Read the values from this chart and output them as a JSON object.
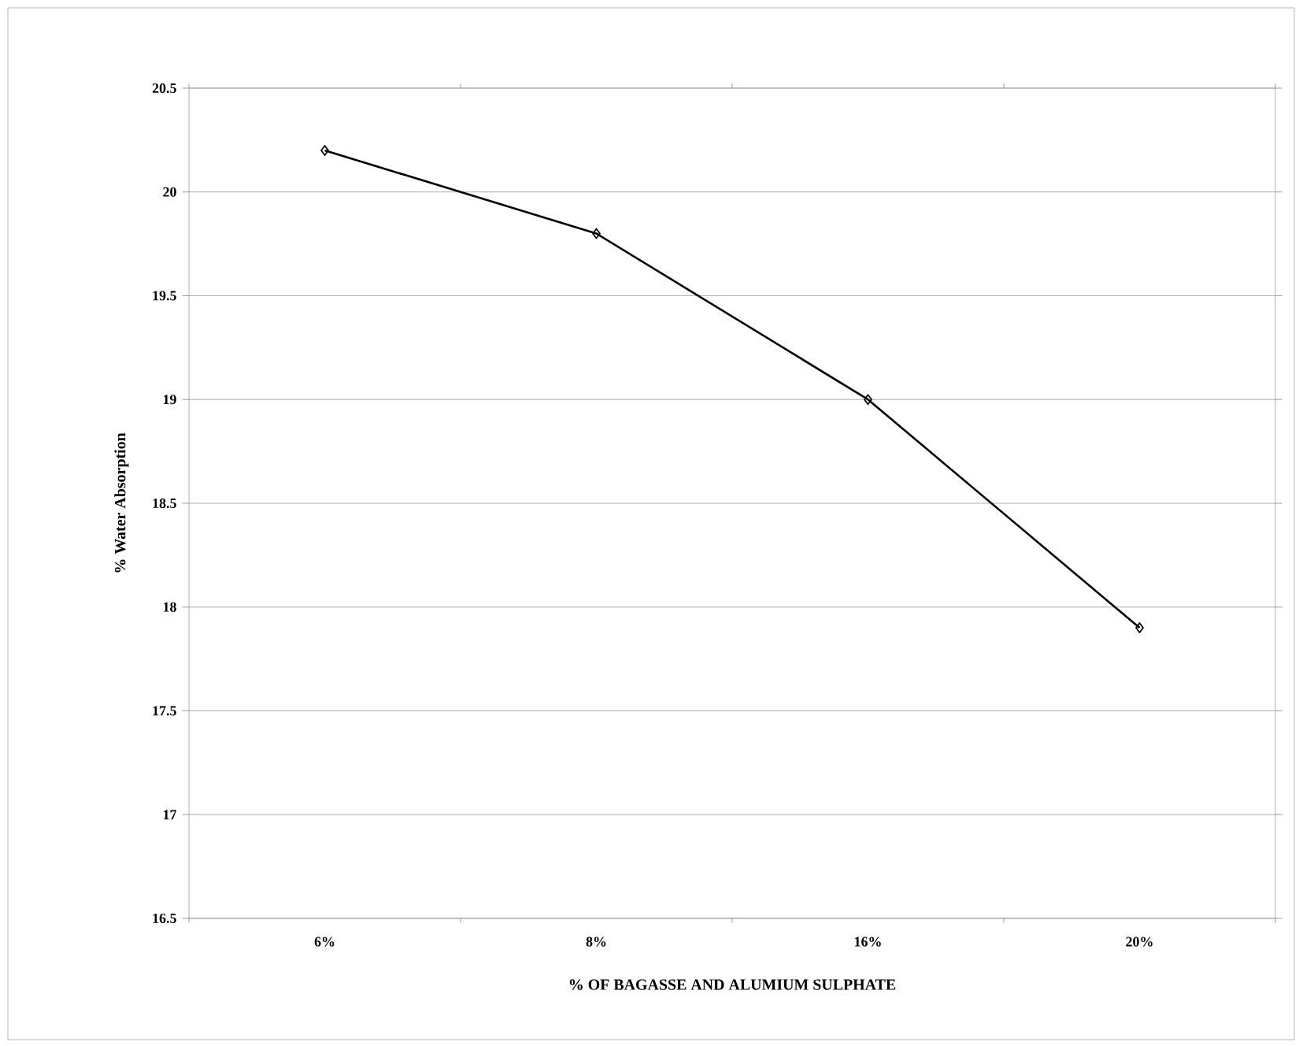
{
  "chart_data": {
    "type": "line",
    "xlabel": "% OF BAGASSE AND ALUMIUM SULPHATE",
    "ylabel": "% Water Absorption",
    "categories": [
      "6%",
      "8%",
      "16%",
      "20%"
    ],
    "values": [
      20.2,
      19.8,
      19.0,
      17.9
    ],
    "color": "#000000",
    "ylim": [
      16.5,
      20.5
    ],
    "yticks": [
      16.5,
      17,
      17.5,
      18,
      18.5,
      19,
      19.5,
      20,
      20.5
    ],
    "grid": "y",
    "marker": "diamond",
    "line_style": "solid"
  }
}
